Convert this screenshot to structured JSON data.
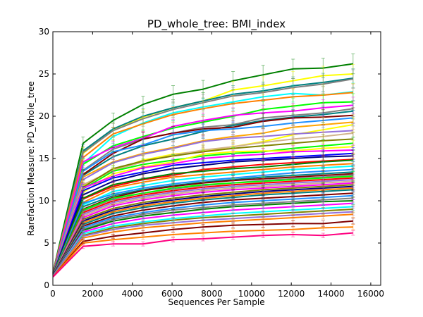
{
  "chart_data": {
    "type": "line",
    "title": "PD_whole_tree: BMI_index",
    "xlabel": "Sequences Per Sample",
    "ylabel": "Rarefaction Measure: PD_whole_tree",
    "xlim": [
      0,
      16500
    ],
    "ylim": [
      0,
      30
    ],
    "xticks": [
      0,
      2000,
      4000,
      6000,
      8000,
      10000,
      12000,
      14000,
      16000
    ],
    "yticks": [
      0,
      5,
      10,
      15,
      20,
      25,
      30
    ],
    "x": [
      10,
      1520,
      3030,
      4540,
      6050,
      7560,
      9070,
      10580,
      12090,
      13600,
      15110
    ],
    "grid": false,
    "legend": "none",
    "series": [
      {
        "color": "#008000",
        "values": [
          1.6,
          16.8,
          19.5,
          21.4,
          22.6,
          23.2,
          24.2,
          24.9,
          25.6,
          25.7,
          26.2
        ]
      },
      {
        "color": "#ffff00",
        "values": [
          1.5,
          15.6,
          18.4,
          19.9,
          21.0,
          21.8,
          23.1,
          23.6,
          24.2,
          24.8,
          25.0
        ]
      },
      {
        "color": "#008080",
        "values": [
          1.5,
          15.9,
          18.5,
          20.0,
          21.0,
          21.8,
          22.6,
          23.0,
          23.6,
          24.0,
          24.5
        ]
      },
      {
        "color": "#808080",
        "values": [
          1.5,
          15.7,
          18.3,
          19.7,
          20.8,
          21.6,
          22.4,
          22.8,
          23.4,
          23.8,
          24.4
        ]
      },
      {
        "color": "#00ffff",
        "values": [
          1.4,
          14.4,
          17.6,
          19.2,
          20.4,
          21.1,
          21.7,
          22.3,
          22.7,
          22.5,
          22.9
        ]
      },
      {
        "color": "#ff8000",
        "values": [
          1.5,
          15.1,
          17.9,
          19.1,
          20.2,
          20.9,
          21.5,
          21.9,
          22.3,
          22.5,
          22.8
        ]
      },
      {
        "color": "#00ff00",
        "values": [
          1.4,
          14.3,
          16.5,
          17.6,
          18.6,
          19.3,
          20.0,
          20.8,
          21.2,
          21.6,
          21.7
        ]
      },
      {
        "color": "#ff00ff",
        "values": [
          1.4,
          14.6,
          16.3,
          17.4,
          18.8,
          19.5,
          20.1,
          20.4,
          20.6,
          21.0,
          21.3
        ]
      },
      {
        "color": "#808080",
        "values": [
          1.4,
          13.6,
          16.1,
          17.3,
          18.0,
          18.7,
          19.0,
          19.8,
          20.1,
          20.4,
          20.9
        ]
      },
      {
        "color": "#008080",
        "values": [
          1.4,
          13.0,
          15.2,
          16.5,
          17.3,
          18.2,
          18.9,
          19.5,
          19.9,
          20.2,
          20.6
        ]
      },
      {
        "color": "#800000",
        "values": [
          1.4,
          13.1,
          15.6,
          17.3,
          18.0,
          18.5,
          18.7,
          19.4,
          19.8,
          19.9,
          20.1
        ]
      },
      {
        "color": "#1e90ff",
        "values": [
          1.3,
          13.5,
          15.8,
          16.6,
          17.8,
          18.3,
          18.5,
          18.8,
          19.2,
          19.5,
          19.8
        ]
      },
      {
        "color": "#ffa500",
        "values": [
          1.3,
          12.8,
          14.6,
          15.6,
          16.3,
          17.1,
          17.6,
          18.0,
          18.7,
          19.0,
          19.3
        ]
      },
      {
        "color": "#ffff00",
        "values": [
          1.3,
          11.8,
          13.6,
          14.8,
          15.5,
          15.9,
          16.4,
          17.0,
          17.8,
          18.4,
          19.0
        ]
      },
      {
        "color": "#9370db",
        "values": [
          1.3,
          12.5,
          14.5,
          15.5,
          16.2,
          17.0,
          17.4,
          17.6,
          17.9,
          18.1,
          18.3
        ]
      },
      {
        "color": "#d2b48c",
        "values": [
          1.3,
          11.9,
          13.6,
          14.6,
          15.4,
          16.0,
          16.4,
          16.9,
          17.3,
          17.6,
          18.0
        ]
      },
      {
        "color": "#808000",
        "values": [
          1.3,
          11.6,
          13.8,
          14.7,
          15.3,
          15.8,
          16.2,
          16.5,
          16.8,
          17.1,
          17.3
        ]
      },
      {
        "color": "#00ff00",
        "values": [
          1.3,
          11.4,
          13.5,
          14.3,
          14.8,
          15.3,
          15.6,
          15.8,
          16.2,
          16.5,
          16.8
        ]
      },
      {
        "color": "#ffff00",
        "values": [
          1.3,
          11.0,
          13.2,
          14.0,
          14.6,
          15.5,
          15.8,
          15.9,
          15.9,
          16.2,
          16.4
        ]
      },
      {
        "color": "#ff00ff",
        "values": [
          1.3,
          11.5,
          12.9,
          13.9,
          14.4,
          15.0,
          15.3,
          15.5,
          15.8,
          15.9,
          16.0
        ]
      },
      {
        "color": "#0000ff",
        "values": [
          1.3,
          11.2,
          12.7,
          13.4,
          14.2,
          14.5,
          14.8,
          15.0,
          15.2,
          15.4,
          15.6
        ]
      },
      {
        "color": "#000080",
        "values": [
          1.3,
          10.7,
          12.3,
          13.2,
          13.8,
          14.2,
          14.6,
          14.8,
          15.0,
          15.2,
          15.3
        ]
      },
      {
        "color": "#ff0000",
        "values": [
          1.3,
          10.2,
          11.7,
          12.5,
          13.0,
          13.7,
          14.0,
          14.3,
          14.5,
          14.7,
          14.9
        ]
      },
      {
        "color": "#008000",
        "values": [
          1.3,
          10.3,
          11.9,
          12.6,
          13.2,
          13.5,
          13.8,
          14.0,
          14.3,
          14.6,
          14.8
        ]
      },
      {
        "color": "#ff8000",
        "values": [
          1.2,
          9.8,
          11.5,
          12.2,
          12.8,
          13.1,
          13.4,
          13.7,
          14.0,
          14.2,
          14.4
        ]
      },
      {
        "color": "#00ffff",
        "values": [
          1.2,
          9.5,
          11.1,
          11.8,
          12.4,
          12.8,
          13.1,
          13.4,
          13.7,
          13.9,
          14.1
        ]
      },
      {
        "color": "#1e90ff",
        "values": [
          1.2,
          9.7,
          10.8,
          11.5,
          12.0,
          12.4,
          12.7,
          13.0,
          13.3,
          13.5,
          13.7
        ]
      },
      {
        "color": "#008080",
        "values": [
          1.2,
          9.3,
          10.6,
          11.3,
          11.8,
          12.2,
          12.5,
          12.8,
          13.0,
          13.2,
          13.4
        ]
      },
      {
        "color": "#800000",
        "values": [
          1.2,
          9.0,
          10.4,
          11.2,
          11.7,
          12.1,
          12.4,
          12.6,
          12.8,
          13.0,
          13.2
        ]
      },
      {
        "color": "#808080",
        "values": [
          1.2,
          8.8,
          10.2,
          10.9,
          11.4,
          11.8,
          12.1,
          12.4,
          12.6,
          12.8,
          13.0
        ]
      },
      {
        "color": "#00ff00",
        "values": [
          1.2,
          8.9,
          10.3,
          10.9,
          11.5,
          11.9,
          12.1,
          12.3,
          12.5,
          12.7,
          12.9
        ]
      },
      {
        "color": "#ff0000",
        "values": [
          1.2,
          8.6,
          10.0,
          10.7,
          11.2,
          11.6,
          11.9,
          12.1,
          12.3,
          12.5,
          12.7
        ]
      },
      {
        "color": "#9370db",
        "values": [
          1.2,
          8.4,
          9.8,
          10.5,
          11.0,
          11.4,
          11.7,
          11.9,
          12.1,
          12.3,
          12.5
        ]
      },
      {
        "color": "#d2b48c",
        "values": [
          1.2,
          8.2,
          9.6,
          10.3,
          10.8,
          11.2,
          11.5,
          11.7,
          11.9,
          12.1,
          12.3
        ]
      },
      {
        "color": "#ff00ff",
        "values": [
          1.2,
          8.0,
          9.4,
          10.1,
          10.6,
          11.0,
          11.3,
          11.5,
          11.7,
          11.9,
          12.1
        ]
      },
      {
        "color": "#808000",
        "values": [
          1.2,
          7.8,
          9.1,
          9.8,
          10.3,
          10.7,
          11.0,
          11.3,
          11.5,
          11.7,
          11.9
        ]
      },
      {
        "color": "#000080",
        "values": [
          1.2,
          7.6,
          8.9,
          9.6,
          10.1,
          10.5,
          10.8,
          11.1,
          11.3,
          11.5,
          11.7
        ]
      },
      {
        "color": "#ff8000",
        "values": [
          1.1,
          7.4,
          8.7,
          9.4,
          9.9,
          10.3,
          10.6,
          10.9,
          11.1,
          11.3,
          11.5
        ]
      },
      {
        "color": "#008080",
        "values": [
          1.1,
          7.2,
          8.5,
          9.2,
          9.7,
          10.1,
          10.4,
          10.7,
          10.9,
          11.1,
          11.3
        ]
      },
      {
        "color": "#800000",
        "values": [
          1.1,
          7.0,
          8.2,
          8.9,
          9.4,
          9.8,
          10.1,
          10.3,
          10.5,
          10.7,
          10.9
        ]
      },
      {
        "color": "#1e90ff",
        "values": [
          1.1,
          6.8,
          8.0,
          8.6,
          9.1,
          9.5,
          9.8,
          10.0,
          10.2,
          10.4,
          10.6
        ]
      },
      {
        "color": "#808080",
        "values": [
          1.1,
          6.6,
          7.8,
          8.4,
          8.9,
          9.2,
          9.5,
          9.7,
          9.9,
          10.1,
          10.3
        ]
      },
      {
        "color": "#008000",
        "values": [
          1.1,
          6.5,
          7.6,
          8.2,
          8.6,
          9.0,
          9.3,
          9.5,
          9.7,
          9.9,
          10.0
        ]
      },
      {
        "color": "#ff00ff",
        "values": [
          1.1,
          6.3,
          7.3,
          7.9,
          8.3,
          8.6,
          8.9,
          9.1,
          9.3,
          9.5,
          9.7
        ]
      },
      {
        "color": "#00ffff",
        "values": [
          1.1,
          6.1,
          7.0,
          7.5,
          7.9,
          8.2,
          8.5,
          8.7,
          8.9,
          9.1,
          9.3
        ]
      },
      {
        "color": "#808000",
        "values": [
          1.1,
          5.9,
          6.8,
          7.3,
          7.7,
          8.0,
          8.2,
          8.4,
          8.6,
          8.8,
          9.0
        ]
      },
      {
        "color": "#9370db",
        "values": [
          1.1,
          5.8,
          6.6,
          7.1,
          7.4,
          7.7,
          7.9,
          8.1,
          8.3,
          8.5,
          8.7
        ]
      },
      {
        "color": "#ff8000",
        "values": [
          1.0,
          5.6,
          6.3,
          6.8,
          7.1,
          7.4,
          7.6,
          7.8,
          8.0,
          8.2,
          8.4
        ]
      },
      {
        "color": "#800000",
        "values": [
          1.0,
          5.2,
          5.8,
          6.2,
          6.6,
          6.9,
          7.1,
          7.2,
          7.3,
          7.3,
          7.6
        ]
      },
      {
        "color": "#ff8000",
        "values": [
          1.0,
          5.0,
          5.4,
          5.7,
          6.0,
          6.2,
          6.4,
          6.5,
          6.6,
          6.8,
          6.9
        ]
      },
      {
        "color": "#ff0080",
        "values": [
          1.0,
          4.6,
          4.9,
          4.9,
          5.4,
          5.5,
          5.7,
          5.9,
          6.0,
          5.9,
          6.2
        ]
      }
    ]
  }
}
